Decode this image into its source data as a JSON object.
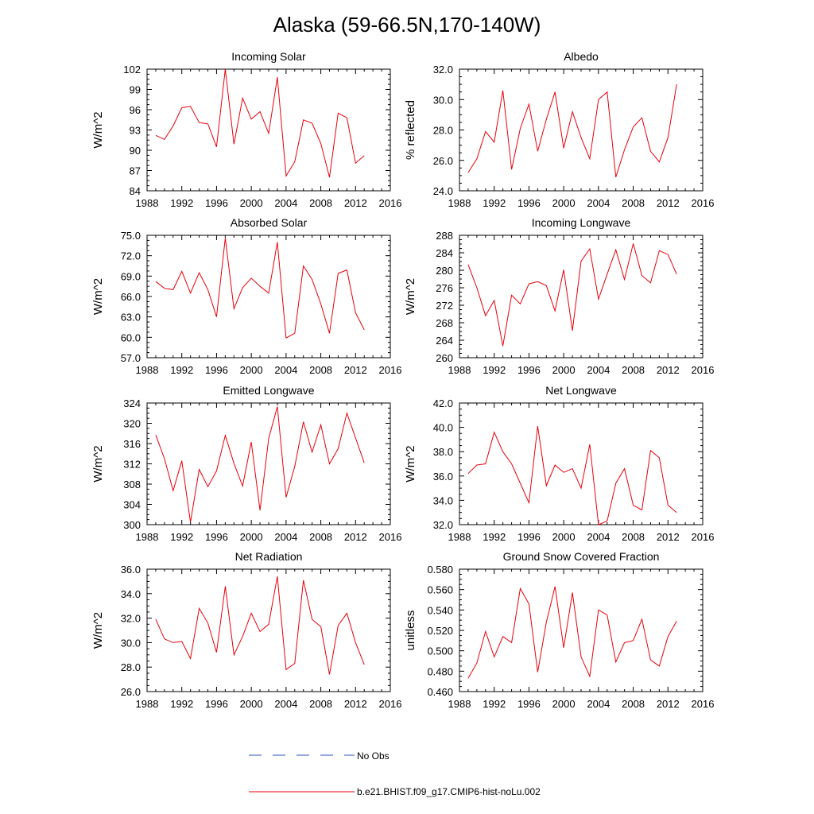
{
  "figure": {
    "title": "Alaska (59-66.5N,170-140W)",
    "legend": [
      {
        "label": "No Obs",
        "color": "#3050c0",
        "style": "dashed"
      },
      {
        "label": "b.e21.BHIST.f09_g17.CMIP6-hist-noLu.002",
        "color": "#e8000b",
        "style": "solid"
      }
    ]
  },
  "chart_data": [
    {
      "type": "line",
      "title": "Incoming Solar",
      "ylabel": "W/m^2",
      "xlim": [
        1988,
        2016
      ],
      "ylim": [
        84,
        102
      ],
      "xticks": [
        1988,
        1992,
        1996,
        2000,
        2004,
        2008,
        2012,
        2016
      ],
      "yticks": [
        "84",
        "87",
        "90",
        "93",
        "96",
        "99",
        "102"
      ],
      "series": [
        {
          "color": "#e8000b",
          "x": [
            1989,
            1990,
            1991,
            1992,
            1993,
            1994,
            1995,
            1996,
            1997,
            1998,
            1999,
            2000,
            2001,
            2002,
            2003,
            2004,
            2005,
            2006,
            2007,
            2008,
            2009,
            2010,
            2011,
            2012,
            2013
          ],
          "y": [
            92.2,
            91.6,
            93.6,
            96.3,
            96.5,
            94.1,
            93.9,
            90.5,
            102.0,
            90.9,
            97.7,
            94.6,
            95.7,
            92.5,
            100.8,
            86.2,
            88.3,
            94.5,
            94.0,
            91.0,
            86.0,
            95.5,
            94.8,
            88.1,
            89.2
          ]
        }
      ]
    },
    {
      "type": "line",
      "title": "Albedo",
      "ylabel": "% reflected",
      "xlim": [
        1988,
        2016
      ],
      "ylim": [
        24,
        32
      ],
      "xticks": [
        1988,
        1992,
        1996,
        2000,
        2004,
        2008,
        2012,
        2016
      ],
      "yticks": [
        "24.0",
        "26.0",
        "28.0",
        "30.0",
        "32.0"
      ],
      "series": [
        {
          "color": "#e8000b",
          "x": [
            1989,
            1990,
            1991,
            1992,
            1993,
            1994,
            1995,
            1996,
            1997,
            1998,
            1999,
            2000,
            2001,
            2002,
            2003,
            2004,
            2005,
            2006,
            2007,
            2008,
            2009,
            2010,
            2011,
            2012,
            2013
          ],
          "y": [
            25.2,
            26.1,
            27.9,
            27.2,
            30.6,
            25.4,
            28.1,
            29.7,
            26.6,
            28.7,
            30.5,
            26.8,
            29.2,
            27.5,
            26.1,
            30.0,
            30.5,
            24.9,
            26.7,
            28.2,
            28.8,
            26.6,
            25.9,
            27.5,
            31.0
          ]
        }
      ]
    },
    {
      "type": "line",
      "title": "Absorbed Solar",
      "ylabel": "W/m^2",
      "xlim": [
        1988,
        2016
      ],
      "ylim": [
        57,
        75
      ],
      "xticks": [
        1988,
        1992,
        1996,
        2000,
        2004,
        2008,
        2012,
        2016
      ],
      "yticks": [
        "57.0",
        "60.0",
        "63.0",
        "66.0",
        "69.0",
        "72.0",
        "75.0"
      ],
      "series": [
        {
          "color": "#e8000b",
          "x": [
            1989,
            1990,
            1991,
            1992,
            1993,
            1994,
            1995,
            1996,
            1997,
            1998,
            1999,
            2000,
            2001,
            2002,
            2003,
            2004,
            2005,
            2006,
            2007,
            2008,
            2009,
            2010,
            2011,
            2012,
            2013
          ],
          "y": [
            68.2,
            67.2,
            67.0,
            69.7,
            66.5,
            69.5,
            67.0,
            63.0,
            74.6,
            64.2,
            67.3,
            68.7,
            67.5,
            66.5,
            74.0,
            59.9,
            60.6,
            70.5,
            68.5,
            64.9,
            60.6,
            69.4,
            69.9,
            63.6,
            61.1
          ]
        }
      ]
    },
    {
      "type": "line",
      "title": "Incoming Longwave",
      "ylabel": "W/m^2",
      "xlim": [
        1988,
        2016
      ],
      "ylim": [
        260,
        288
      ],
      "xticks": [
        1988,
        1992,
        1996,
        2000,
        2004,
        2008,
        2012,
        2016
      ],
      "yticks": [
        "260",
        "264",
        "268",
        "272",
        "276",
        "280",
        "284",
        "288"
      ],
      "series": [
        {
          "color": "#e8000b",
          "x": [
            1989,
            1990,
            1991,
            1992,
            1993,
            1994,
            1995,
            1996,
            1997,
            1998,
            1999,
            2000,
            2001,
            2002,
            2003,
            2004,
            2005,
            2006,
            2007,
            2008,
            2009,
            2010,
            2011,
            2012,
            2013
          ],
          "y": [
            281.3,
            276.0,
            269.6,
            273.1,
            262.7,
            274.3,
            272.3,
            276.9,
            277.4,
            276.5,
            270.7,
            280.1,
            266.2,
            282.1,
            284.9,
            273.4,
            279.1,
            284.7,
            277.9,
            286.1,
            278.8,
            277.1,
            284.5,
            283.6,
            279.1
          ]
        }
      ]
    },
    {
      "type": "line",
      "title": "Emitted Longwave",
      "ylabel": "W/m^2",
      "xlim": [
        1988,
        2016
      ],
      "ylim": [
        300,
        324
      ],
      "xticks": [
        1988,
        1992,
        1996,
        2000,
        2004,
        2008,
        2012,
        2016
      ],
      "yticks": [
        "300",
        "304",
        "308",
        "312",
        "316",
        "320",
        "324"
      ],
      "series": [
        {
          "color": "#e8000b",
          "x": [
            1989,
            1990,
            1991,
            1992,
            1993,
            1994,
            1995,
            1996,
            1997,
            1998,
            1999,
            2000,
            2001,
            2002,
            2003,
            2004,
            2005,
            2006,
            2007,
            2008,
            2009,
            2010,
            2011,
            2012,
            2013
          ],
          "y": [
            317.7,
            313.0,
            306.7,
            312.6,
            300.5,
            310.9,
            307.5,
            310.6,
            317.6,
            312.1,
            307.6,
            316.3,
            302.8,
            317.0,
            323.3,
            305.4,
            311.5,
            320.3,
            314.3,
            319.7,
            312.0,
            315.0,
            322.0,
            317.1,
            312.2
          ]
        }
      ]
    },
    {
      "type": "line",
      "title": "Net Longwave",
      "ylabel": "W/m^2",
      "xlim": [
        1988,
        2016
      ],
      "ylim": [
        32,
        42
      ],
      "xticks": [
        1988,
        1992,
        1996,
        2000,
        2004,
        2008,
        2012,
        2016
      ],
      "yticks": [
        "32.0",
        "34.0",
        "36.0",
        "38.0",
        "40.0",
        "42.0"
      ],
      "series": [
        {
          "color": "#e8000b",
          "x": [
            1989,
            1990,
            1991,
            1992,
            1993,
            1994,
            1995,
            1996,
            1997,
            1998,
            1999,
            2000,
            2001,
            2002,
            2003,
            2004,
            2005,
            2006,
            2007,
            2008,
            2009,
            2010,
            2011,
            2012,
            2013
          ],
          "y": [
            36.2,
            36.9,
            37.0,
            39.6,
            38.0,
            37.0,
            35.4,
            33.8,
            40.1,
            35.2,
            36.9,
            36.3,
            36.6,
            35.0,
            38.6,
            32.0,
            32.3,
            35.4,
            36.6,
            33.6,
            33.2,
            38.1,
            37.5,
            33.6,
            33.0
          ]
        }
      ]
    },
    {
      "type": "line",
      "title": "Net Radiation",
      "ylabel": "W/m^2",
      "xlim": [
        1988,
        2016
      ],
      "ylim": [
        26,
        36
      ],
      "xticks": [
        1988,
        1992,
        1996,
        2000,
        2004,
        2008,
        2012,
        2016
      ],
      "yticks": [
        "26.0",
        "28.0",
        "30.0",
        "32.0",
        "34.0",
        "36.0"
      ],
      "series": [
        {
          "color": "#e8000b",
          "x": [
            1989,
            1990,
            1991,
            1992,
            1993,
            1994,
            1995,
            1996,
            1997,
            1998,
            1999,
            2000,
            2001,
            2002,
            2003,
            2004,
            2005,
            2006,
            2007,
            2008,
            2009,
            2010,
            2011,
            2012,
            2013
          ],
          "y": [
            31.9,
            30.3,
            30.0,
            30.1,
            28.7,
            32.8,
            31.6,
            29.2,
            34.6,
            29.0,
            30.5,
            32.4,
            30.9,
            31.5,
            35.4,
            27.8,
            28.3,
            35.1,
            31.9,
            31.3,
            27.4,
            31.4,
            32.4,
            30.0,
            28.2
          ]
        }
      ]
    },
    {
      "type": "line",
      "title": "Ground Snow Covered Fraction",
      "ylabel": "unitless",
      "xlim": [
        1988,
        2016
      ],
      "ylim": [
        0.46,
        0.58
      ],
      "xticks": [
        1988,
        1992,
        1996,
        2000,
        2004,
        2008,
        2012,
        2016
      ],
      "yticks": [
        "0.460",
        "0.480",
        "0.500",
        "0.520",
        "0.540",
        "0.560",
        "0.580"
      ],
      "series": [
        {
          "color": "#e8000b",
          "x": [
            1989,
            1990,
            1991,
            1992,
            1993,
            1994,
            1995,
            1996,
            1997,
            1998,
            1999,
            2000,
            2001,
            2002,
            2003,
            2004,
            2005,
            2006,
            2007,
            2008,
            2009,
            2010,
            2011,
            2012,
            2013
          ],
          "y": [
            0.473,
            0.488,
            0.519,
            0.494,
            0.514,
            0.508,
            0.561,
            0.546,
            0.479,
            0.528,
            0.563,
            0.503,
            0.557,
            0.494,
            0.475,
            0.54,
            0.535,
            0.489,
            0.508,
            0.51,
            0.531,
            0.491,
            0.485,
            0.514,
            0.529
          ]
        }
      ]
    }
  ]
}
